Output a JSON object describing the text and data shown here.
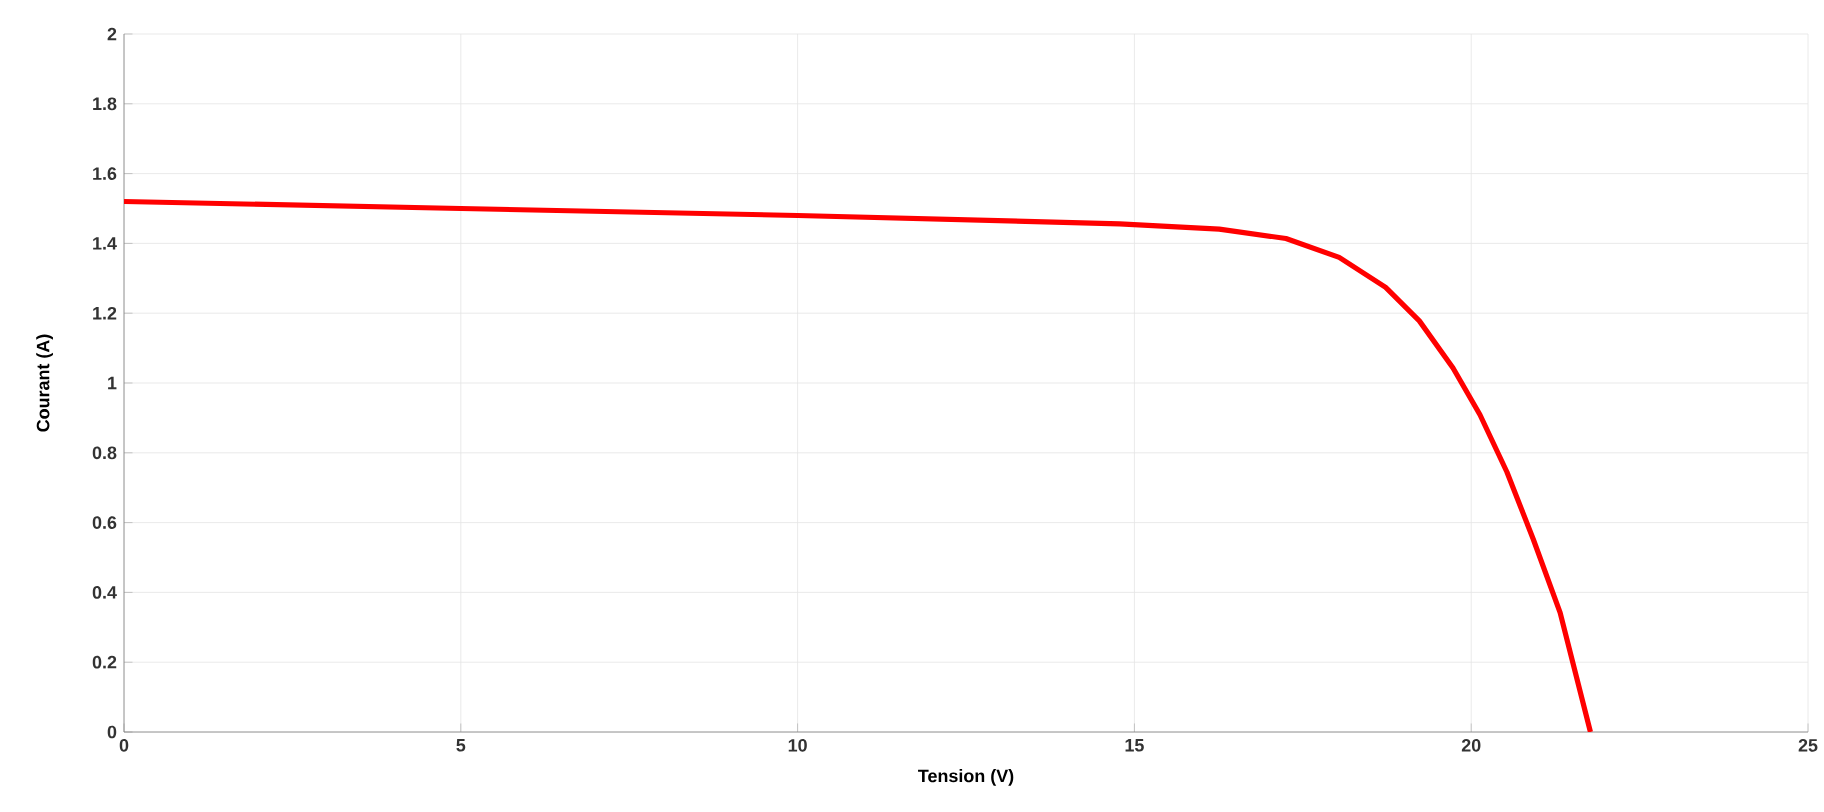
{
  "chart_data": {
    "type": "line",
    "xlabel": "Tension (V)",
    "ylabel": "Courant (A)",
    "xlim": [
      0,
      25
    ],
    "xticks": [
      0,
      5,
      10,
      15,
      20,
      25
    ],
    "ylim": [
      0,
      2
    ],
    "yticks": [
      0,
      0.2,
      0.4,
      0.6,
      0.8,
      1,
      1.2,
      1.4,
      1.6,
      1.8,
      2
    ],
    "grid": true,
    "marker": "none",
    "line_style": "solid",
    "series": [
      {
        "color": "#ff0000",
        "x": [
          0,
          5,
          10,
          14.78,
          16.26,
          17.25,
          18.04,
          18.73,
          19.23,
          19.73,
          20.13,
          20.53,
          20.92,
          21.32,
          21.77
        ],
        "values": [
          1.52,
          1.5,
          1.48,
          1.456,
          1.441,
          1.414,
          1.36,
          1.274,
          1.178,
          1.043,
          0.909,
          0.745,
          0.553,
          0.342,
          0
        ]
      }
    ]
  }
}
